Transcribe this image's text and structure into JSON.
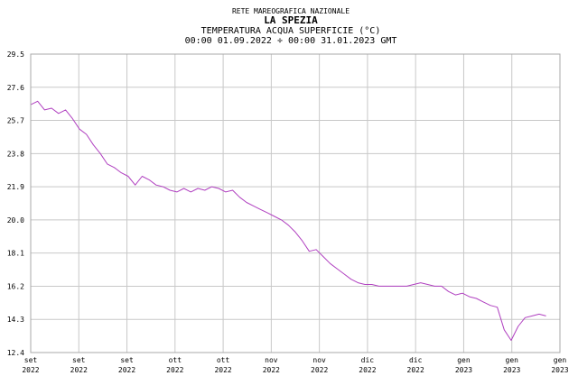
{
  "chart_data": {
    "type": "line",
    "title_lines": [
      "RETE MAREOGRAFICA NAZIONALE",
      "LA SPEZIA",
      "TEMPERATURA ACQUA SUPERFICIE (°C)",
      "00:00 01.09.2022 ÷ 00:00 31.01.2023 GMT"
    ],
    "ylim": [
      12.4,
      29.5
    ],
    "y_ticks": [
      "29.5",
      "27.6",
      "25.7",
      "23.8",
      "21.9",
      "20.0",
      "18.1",
      "16.2",
      "14.3",
      "12.4"
    ],
    "x_ticks": [
      {
        "month": "set",
        "year": "2022"
      },
      {
        "month": "set",
        "year": "2022"
      },
      {
        "month": "set",
        "year": "2022"
      },
      {
        "month": "ott",
        "year": "2022"
      },
      {
        "month": "ott",
        "year": "2022"
      },
      {
        "month": "nov",
        "year": "2022"
      },
      {
        "month": "nov",
        "year": "2022"
      },
      {
        "month": "dic",
        "year": "2022"
      },
      {
        "month": "dic",
        "year": "2022"
      },
      {
        "month": "gen",
        "year": "2023"
      },
      {
        "month": "gen",
        "year": "2023"
      },
      {
        "month": "gen",
        "year": "2023"
      }
    ],
    "x_unit": "days since 01.09.2022",
    "xlim": [
      0,
      152
    ],
    "grid": true,
    "series": [
      {
        "name": "Temperatura acqua superficie",
        "color": "#b040c0",
        "x": [
          0,
          2,
          4,
          6,
          8,
          10,
          12,
          14,
          16,
          18,
          20,
          22,
          24,
          26,
          28,
          30,
          32,
          34,
          36,
          38,
          40,
          42,
          44,
          46,
          48,
          50,
          52,
          54,
          56,
          58,
          60,
          62,
          64,
          66,
          68,
          70,
          72,
          74,
          76,
          78,
          80,
          82,
          84,
          86,
          88,
          90,
          92,
          94,
          96,
          98,
          100,
          102,
          104,
          106,
          108,
          110,
          112,
          114,
          116,
          118,
          120,
          122,
          124,
          126,
          128,
          130,
          132,
          134,
          136,
          138,
          140,
          142,
          144,
          146,
          148
        ],
        "y": [
          26.6,
          26.8,
          26.3,
          26.4,
          26.1,
          26.3,
          25.8,
          25.2,
          24.9,
          24.3,
          23.8,
          23.2,
          23.0,
          22.7,
          22.5,
          22.0,
          22.5,
          22.3,
          22.0,
          21.9,
          21.7,
          21.6,
          21.8,
          21.6,
          21.8,
          21.7,
          21.9,
          21.8,
          21.6,
          21.7,
          21.3,
          21.0,
          20.8,
          20.6,
          20.4,
          20.2,
          20.0,
          19.7,
          19.3,
          18.8,
          18.2,
          18.3,
          17.9,
          17.5,
          17.2,
          16.9,
          16.6,
          16.4,
          16.3,
          16.3,
          16.2,
          16.2,
          16.2,
          16.2,
          16.2,
          16.3,
          16.4,
          16.3,
          16.2,
          16.2,
          15.9,
          15.7,
          15.8,
          15.6,
          15.5,
          15.3,
          15.1,
          15.0,
          13.7,
          13.1,
          13.9,
          14.4,
          14.5,
          14.6,
          14.5
        ]
      }
    ]
  }
}
